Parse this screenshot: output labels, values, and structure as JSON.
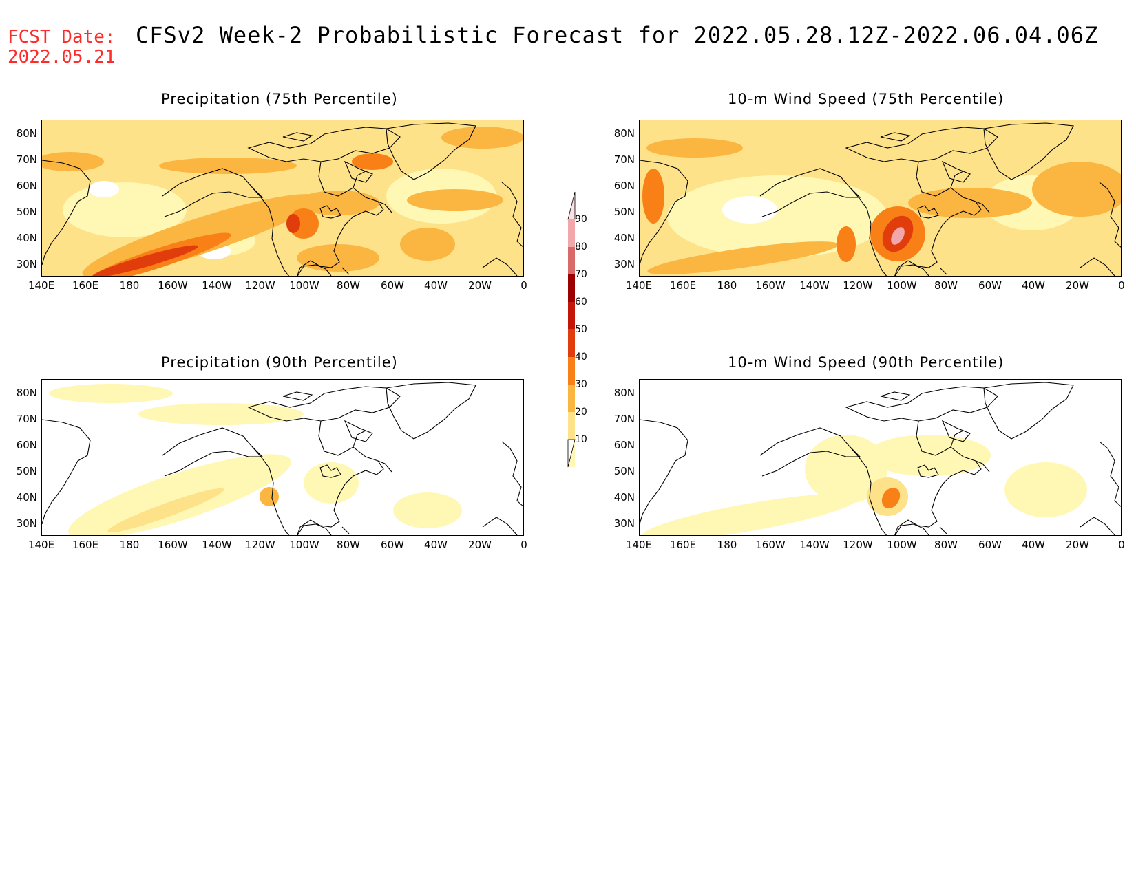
{
  "header": {
    "fcst_label": "FCST Date:",
    "fcst_date": "2022.05.21",
    "title": "CFSv2 Week-2 Probabilistic Forecast for 2022.05.28.12Z-2022.06.04.06Z"
  },
  "colors": {
    "header_red": "#ff2a2a",
    "levels": [
      "#ffffff",
      "#fff8b4",
      "#fde28a",
      "#fbb541",
      "#f88017",
      "#e13d0c",
      "#c41608",
      "#9c0000",
      "#d86a6a",
      "#f2a7aa",
      "#fbe0e4"
    ]
  },
  "colorbar": {
    "ticks": [
      "10",
      "20",
      "30",
      "40",
      "50",
      "60",
      "70",
      "80",
      "90"
    ]
  },
  "axes": {
    "lat_labels": [
      "80N",
      "70N",
      "60N",
      "50N",
      "40N",
      "30N"
    ],
    "lon_labels": [
      "140E",
      "160E",
      "180",
      "160W",
      "140W",
      "120W",
      "100W",
      "80W",
      "60W",
      "40W",
      "20W",
      "0"
    ]
  },
  "panels": [
    {
      "id": "precip75",
      "title": "Precipitation (75th Percentile)",
      "intensity": "high"
    },
    {
      "id": "wind75",
      "title": "10-m Wind Speed (75th Percentile)",
      "intensity": "high"
    },
    {
      "id": "precip90",
      "title": "Precipitation (90th Percentile)",
      "intensity": "low"
    },
    {
      "id": "wind90",
      "title": "10-m Wind Speed (90th Percentile)",
      "intensity": "low"
    }
  ]
}
